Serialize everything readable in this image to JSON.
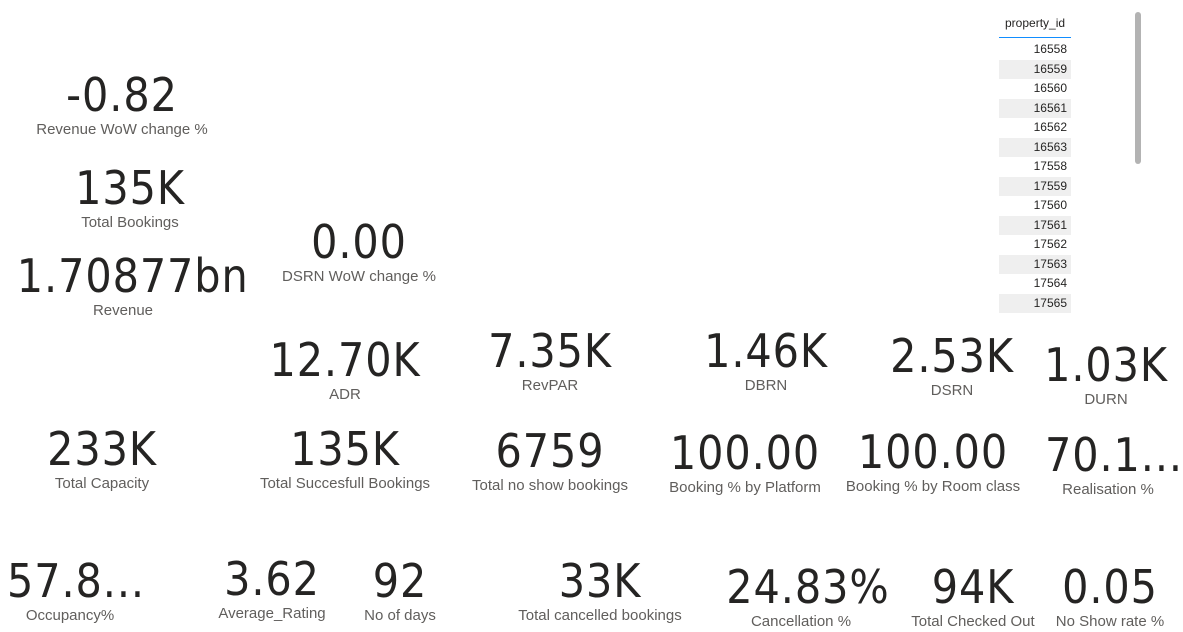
{
  "cards": {
    "revenue_wow": {
      "value": "-0.82",
      "label": "Revenue WoW change %"
    },
    "total_bookings": {
      "value": "135K",
      "label": "Total Bookings"
    },
    "revenue": {
      "value": "1.70877bn",
      "label": "Revenue"
    },
    "dsrn_wow": {
      "value": "0.00",
      "label": "DSRN WoW change %"
    },
    "adr": {
      "value": "12.70K",
      "label": "ADR"
    },
    "revpar": {
      "value": "7.35K",
      "label": "RevPAR"
    },
    "dbrn": {
      "value": "1.46K",
      "label": "DBRN"
    },
    "dsrn": {
      "value": "2.53K",
      "label": "DSRN"
    },
    "durn": {
      "value": "1.03K",
      "label": "DURN"
    },
    "total_capacity": {
      "value": "233K",
      "label": "Total Capacity"
    },
    "total_successful": {
      "value": "135K",
      "label": "Total Succesfull Bookings"
    },
    "no_show_bookings": {
      "value": "6759",
      "label": "Total no show bookings"
    },
    "booking_pct_platform": {
      "value": "100.00",
      "label": "Booking % by Platform"
    },
    "booking_pct_room": {
      "value": "100.00",
      "label": "Booking % by Room class"
    },
    "realisation": {
      "value": "70.1...",
      "label": "Realisation %"
    },
    "occupancy": {
      "value": "57.8...",
      "label": "Occupancy%"
    },
    "avg_rating": {
      "value": "3.62",
      "label": "Average_Rating"
    },
    "no_of_days": {
      "value": "92",
      "label": "No of days"
    },
    "cancelled": {
      "value": "33K",
      "label": "Total cancelled bookings"
    },
    "cancellation_pct": {
      "value": "24.83%",
      "label": "Cancellation %"
    },
    "checked_out": {
      "value": "94K",
      "label": "Total Checked Out"
    },
    "no_show_rate": {
      "value": "0.05",
      "label": "No Show rate %"
    }
  },
  "slicer": {
    "header": "property_id",
    "items": [
      "16558",
      "16559",
      "16560",
      "16561",
      "16562",
      "16563",
      "17558",
      "17559",
      "17560",
      "17561",
      "17562",
      "17563",
      "17564",
      "17565"
    ]
  }
}
